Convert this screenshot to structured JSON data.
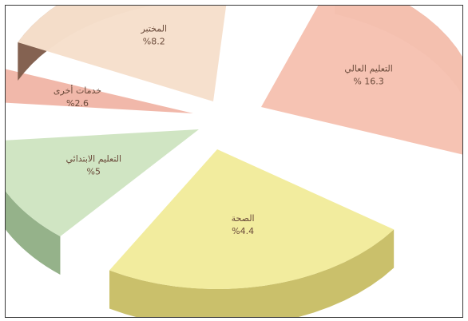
{
  "chart_data": {
    "type": "pie",
    "title": "",
    "slices": [
      {
        "name": "التعليم العالي",
        "label": "% 16.3",
        "value": 16.3,
        "color": "#f6c2b1",
        "side": "#9a5a4a"
      },
      {
        "name": "الصحة",
        "label": "%4.4",
        "value": 4.4,
        "color": "#f2ec9c",
        "side": "#c7bd63"
      },
      {
        "name": "التعليم الابتدائي",
        "label": "%5",
        "value": 5,
        "color": "#cfe4c2",
        "side": "#8fae84"
      },
      {
        "name": "خدمات أخرى",
        "label": "%2.6",
        "value": 2.6,
        "color": "#f1b7a8",
        "side": "#a76656"
      },
      {
        "name": "المختبر",
        "label": "%8.2",
        "value": 8.2,
        "color": "#f6dfcc",
        "side": "#7d5a48"
      }
    ],
    "legend": "none"
  }
}
